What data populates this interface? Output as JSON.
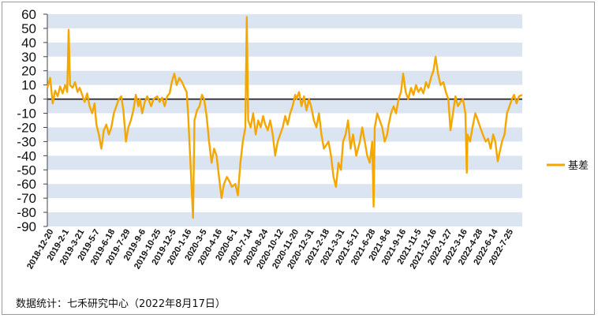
{
  "chart_data": {
    "type": "line",
    "title": "",
    "xlabel": "",
    "ylabel": "",
    "ylim": [
      -90,
      60
    ],
    "yticks": [
      60,
      50,
      40,
      30,
      20,
      10,
      0,
      -10,
      -20,
      -30,
      -40,
      -50,
      -60,
      -70,
      -80,
      -90
    ],
    "xlim": [
      "2018-12-20",
      "2022-08-17"
    ],
    "x_tick_labels": [
      "2018-12-20",
      "2019-2-1",
      "2019-3-21",
      "2019-5-7",
      "2019-6-18",
      "2019-7-29",
      "2019-9-6",
      "2019-10-25",
      "2019-12-5",
      "2020-1-16",
      "2020-3-5",
      "2020-4-16",
      "2020-6-1",
      "2020-7-14",
      "2020-8-24",
      "2020-10-12",
      "2020-11-20",
      "2020-12-31",
      "2021-2-18",
      "2021-3-31",
      "2021-5-17",
      "2021-6-28",
      "2021-8-6",
      "2021-9-16",
      "2021-11-5",
      "2021-12-16",
      "2022-1-27",
      "2022-3-16",
      "2022-4-28",
      "2022-6-14",
      "2022-7-25"
    ],
    "grid": "alternating horizontal bands",
    "legend": "right",
    "line_color": "#f4a700",
    "band_color": "#dbe5f1",
    "zero_line": true,
    "series": [
      {
        "name": "基差",
        "points": [
          [
            "2018-12-20",
            8
          ],
          [
            "2018-12-28",
            15
          ],
          [
            "2019-1-4",
            -3
          ],
          [
            "2019-1-11",
            6
          ],
          [
            "2019-1-18",
            2
          ],
          [
            "2019-1-25",
            9
          ],
          [
            "2019-2-1",
            4
          ],
          [
            "2019-2-8",
            10
          ],
          [
            "2019-2-14",
            5
          ],
          [
            "2019-2-18",
            49
          ],
          [
            "2019-2-22",
            10
          ],
          [
            "2019-3-1",
            8
          ],
          [
            "2019-3-8",
            12
          ],
          [
            "2019-3-15",
            5
          ],
          [
            "2019-3-21",
            8
          ],
          [
            "2019-3-28",
            3
          ],
          [
            "2019-4-4",
            -2
          ],
          [
            "2019-4-11",
            4
          ],
          [
            "2019-4-18",
            -5
          ],
          [
            "2019-4-25",
            -10
          ],
          [
            "2019-5-2",
            -3
          ],
          [
            "2019-5-7",
            -18
          ],
          [
            "2019-5-14",
            -25
          ],
          [
            "2019-5-21",
            -35
          ],
          [
            "2019-5-28",
            -22
          ],
          [
            "2019-6-4",
            -18
          ],
          [
            "2019-6-11",
            -25
          ],
          [
            "2019-6-18",
            -20
          ],
          [
            "2019-6-25",
            -10
          ],
          [
            "2019-7-2",
            -5
          ],
          [
            "2019-7-9",
            0
          ],
          [
            "2019-7-16",
            2
          ],
          [
            "2019-7-22",
            -8
          ],
          [
            "2019-7-29",
            -30
          ],
          [
            "2019-8-5",
            -20
          ],
          [
            "2019-8-12",
            -15
          ],
          [
            "2019-8-19",
            -8
          ],
          [
            "2019-8-26",
            3
          ],
          [
            "2019-9-2",
            -5
          ],
          [
            "2019-9-6",
            0
          ],
          [
            "2019-9-13",
            -10
          ],
          [
            "2019-9-20",
            -2
          ],
          [
            "2019-9-27",
            2
          ],
          [
            "2019-10-8",
            -5
          ],
          [
            "2019-10-15",
            0
          ],
          [
            "2019-10-25",
            2
          ],
          [
            "2019-11-1",
            -2
          ],
          [
            "2019-11-8",
            1
          ],
          [
            "2019-11-15",
            -5
          ],
          [
            "2019-11-22",
            2
          ],
          [
            "2019-11-29",
            4
          ],
          [
            "2019-12-5",
            12
          ],
          [
            "2019-12-12",
            18
          ],
          [
            "2019-12-19",
            10
          ],
          [
            "2019-12-26",
            15
          ],
          [
            "2020-1-3",
            12
          ],
          [
            "2020-1-10",
            8
          ],
          [
            "2020-1-16",
            5
          ],
          [
            "2020-1-20",
            -10
          ],
          [
            "2020-2-3",
            -84
          ],
          [
            "2020-2-7",
            -15
          ],
          [
            "2020-2-14",
            -8
          ],
          [
            "2020-2-21",
            -5
          ],
          [
            "2020-2-28",
            3
          ],
          [
            "2020-3-5",
            0
          ],
          [
            "2020-3-12",
            -12
          ],
          [
            "2020-3-19",
            -30
          ],
          [
            "2020-3-26",
            -45
          ],
          [
            "2020-4-2",
            -35
          ],
          [
            "2020-4-9",
            -40
          ],
          [
            "2020-4-16",
            -55
          ],
          [
            "2020-4-23",
            -70
          ],
          [
            "2020-4-30",
            -60
          ],
          [
            "2020-5-8",
            -55
          ],
          [
            "2020-5-15",
            -58
          ],
          [
            "2020-5-22",
            -62
          ],
          [
            "2020-6-1",
            -60
          ],
          [
            "2020-6-8",
            -68
          ],
          [
            "2020-6-15",
            -45
          ],
          [
            "2020-6-22",
            -30
          ],
          [
            "2020-6-29",
            -20
          ],
          [
            "2020-7-3",
            58
          ],
          [
            "2020-7-7",
            -15
          ],
          [
            "2020-7-14",
            -20
          ],
          [
            "2020-7-21",
            -10
          ],
          [
            "2020-7-28",
            -25
          ],
          [
            "2020-8-4",
            -15
          ],
          [
            "2020-8-11",
            -20
          ],
          [
            "2020-8-18",
            -12
          ],
          [
            "2020-8-24",
            -18
          ],
          [
            "2020-8-31",
            -22
          ],
          [
            "2020-9-7",
            -15
          ],
          [
            "2020-9-14",
            -25
          ],
          [
            "2020-9-21",
            -40
          ],
          [
            "2020-9-28",
            -30
          ],
          [
            "2020-10-12",
            -20
          ],
          [
            "2020-10-19",
            -12
          ],
          [
            "2020-10-26",
            -18
          ],
          [
            "2020-11-2",
            -10
          ],
          [
            "2020-11-9",
            -5
          ],
          [
            "2020-11-16",
            3
          ],
          [
            "2020-11-20",
            0
          ],
          [
            "2020-11-27",
            5
          ],
          [
            "2020-12-4",
            -5
          ],
          [
            "2020-12-11",
            2
          ],
          [
            "2020-12-18",
            -8
          ],
          [
            "2020-12-25",
            0
          ],
          [
            "2020-12-31",
            -5
          ],
          [
            "2021-1-8",
            -15
          ],
          [
            "2021-1-15",
            -20
          ],
          [
            "2021-1-22",
            -10
          ],
          [
            "2021-1-29",
            -25
          ],
          [
            "2021-2-5",
            -35
          ],
          [
            "2021-2-18",
            -30
          ],
          [
            "2021-2-25",
            -40
          ],
          [
            "2021-3-4",
            -55
          ],
          [
            "2021-3-11",
            -62
          ],
          [
            "2021-3-18",
            -45
          ],
          [
            "2021-3-25",
            -50
          ],
          [
            "2021-3-31",
            -30
          ],
          [
            "2021-4-7",
            -25
          ],
          [
            "2021-4-14",
            -15
          ],
          [
            "2021-4-21",
            -35
          ],
          [
            "2021-4-28",
            -25
          ],
          [
            "2021-5-7",
            -40
          ],
          [
            "2021-5-17",
            -30
          ],
          [
            "2021-5-24",
            -20
          ],
          [
            "2021-5-31",
            -30
          ],
          [
            "2021-6-7",
            -40
          ],
          [
            "2021-6-14",
            -45
          ],
          [
            "2021-6-21",
            -30
          ],
          [
            "2021-6-25",
            -76
          ],
          [
            "2021-6-28",
            -20
          ],
          [
            "2021-7-5",
            -10
          ],
          [
            "2021-7-12",
            -15
          ],
          [
            "2021-7-19",
            -20
          ],
          [
            "2021-7-26",
            -30
          ],
          [
            "2021-8-2",
            -25
          ],
          [
            "2021-8-6",
            -18
          ],
          [
            "2021-8-13",
            -10
          ],
          [
            "2021-8-20",
            -5
          ],
          [
            "2021-8-27",
            -10
          ],
          [
            "2021-9-3",
            0
          ],
          [
            "2021-9-10",
            5
          ],
          [
            "2021-9-16",
            18
          ],
          [
            "2021-9-23",
            5
          ],
          [
            "2021-9-30",
            0
          ],
          [
            "2021-10-8",
            8
          ],
          [
            "2021-10-15",
            3
          ],
          [
            "2021-10-22",
            10
          ],
          [
            "2021-10-29",
            5
          ],
          [
            "2021-11-5",
            8
          ],
          [
            "2021-11-12",
            4
          ],
          [
            "2021-11-19",
            12
          ],
          [
            "2021-11-26",
            8
          ],
          [
            "2021-12-3",
            15
          ],
          [
            "2021-12-10",
            20
          ],
          [
            "2021-12-16",
            30
          ],
          [
            "2021-12-23",
            18
          ],
          [
            "2021-12-30",
            10
          ],
          [
            "2022-1-7",
            12
          ],
          [
            "2022-1-14",
            5
          ],
          [
            "2022-1-21",
            0
          ],
          [
            "2022-1-27",
            -22
          ],
          [
            "2022-2-10",
            2
          ],
          [
            "2022-2-17",
            -5
          ],
          [
            "2022-2-24",
            -2
          ],
          [
            "2022-3-3",
            0
          ],
          [
            "2022-3-10",
            -10
          ],
          [
            "2022-3-14",
            -52
          ],
          [
            "2022-3-16",
            -25
          ],
          [
            "2022-3-23",
            -30
          ],
          [
            "2022-3-30",
            -20
          ],
          [
            "2022-4-7",
            -10
          ],
          [
            "2022-4-14",
            -15
          ],
          [
            "2022-4-21",
            -20
          ],
          [
            "2022-4-28",
            -25
          ],
          [
            "2022-5-6",
            -30
          ],
          [
            "2022-5-13",
            -28
          ],
          [
            "2022-5-20",
            -35
          ],
          [
            "2022-5-27",
            -25
          ],
          [
            "2022-6-2",
            -30
          ],
          [
            "2022-6-9",
            -44
          ],
          [
            "2022-6-14",
            -38
          ],
          [
            "2022-6-21",
            -30
          ],
          [
            "2022-6-28",
            -25
          ],
          [
            "2022-7-5",
            -10
          ],
          [
            "2022-7-12",
            -5
          ],
          [
            "2022-7-19",
            0
          ],
          [
            "2022-7-25",
            3
          ],
          [
            "2022-8-1",
            -3
          ],
          [
            "2022-8-8",
            2
          ],
          [
            "2022-8-17",
            3
          ]
        ]
      }
    ]
  },
  "source_note": "数据统计：七禾研究中心（2022年8月17日）"
}
